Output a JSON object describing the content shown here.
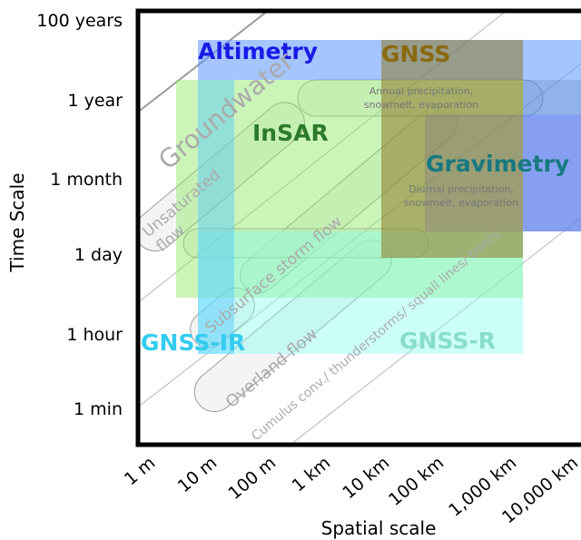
{
  "axes": {
    "x": {
      "label": "Spatial scale",
      "ticks": [
        "1 m",
        "10 m",
        "100 m",
        "1 km",
        "10 km",
        "100 km",
        "1,000 km",
        "10,000 km"
      ]
    },
    "y": {
      "label": "Time Scale",
      "ticks": [
        "100 years",
        "1 year",
        "1 month",
        "1 day",
        "1 hour",
        "1 min"
      ]
    }
  },
  "regions": [
    {
      "label": "Altimetry"
    },
    {
      "label": "GNSS"
    },
    {
      "label": "InSAR"
    },
    {
      "label": "Gravimetry"
    },
    {
      "label": "GNSS-IR"
    },
    {
      "label": "GNSS-R"
    }
  ],
  "processes": [
    {
      "label": "Groundwater"
    },
    {
      "lines": [
        "Unsaturated",
        "flow"
      ]
    },
    {
      "label": "Subsurface storm flow"
    },
    {
      "label": "Overland flow"
    },
    {
      "label": "Cumulus conv./ thunderstorms/ squall lines/ fronts"
    },
    {
      "lines": [
        "Annual precipitation,",
        "snowmelt, evaporation"
      ]
    },
    {
      "lines": [
        "Diurnal precipitation,",
        "snowmelt, evaporation"
      ]
    }
  ]
}
